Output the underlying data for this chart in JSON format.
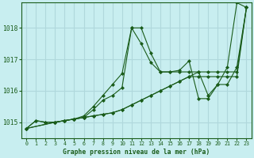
{
  "title": "Graphe pression niveau de la mer (hPa)",
  "bg_color": "#c8eef0",
  "grid_color": "#b0d8dc",
  "line_color": "#1a5c1a",
  "marker_color": "#1a5c1a",
  "x_ticks": [
    0,
    1,
    2,
    3,
    4,
    5,
    6,
    7,
    8,
    9,
    10,
    11,
    12,
    13,
    14,
    15,
    16,
    17,
    18,
    19,
    20,
    21,
    22,
    23
  ],
  "y_ticks": [
    1015,
    1016,
    1017,
    1018
  ],
  "ylim": [
    1014.5,
    1018.8
  ],
  "xlim": [
    -0.5,
    23.5
  ],
  "series": [
    {
      "x": [
        0,
        1,
        2,
        3,
        4,
        5,
        6,
        7,
        8,
        9,
        10,
        11,
        12,
        13,
        14,
        15,
        16,
        17,
        18,
        19,
        20,
        21,
        22,
        23
      ],
      "y": [
        1014.8,
        1015.05,
        1015.0,
        1015.0,
        1015.05,
        1015.1,
        1015.15,
        1015.4,
        1015.7,
        1015.85,
        1016.1,
        1018.0,
        1018.0,
        1017.2,
        1016.6,
        1016.6,
        1016.6,
        1016.6,
        1016.6,
        1015.85,
        1016.2,
        1016.2,
        1016.75,
        1018.65
      ]
    },
    {
      "x": [
        0,
        1,
        2,
        3,
        4,
        5,
        6,
        7,
        8,
        9,
        10,
        11,
        12,
        13,
        14,
        15,
        16,
        17,
        18,
        19,
        20,
        21,
        22,
        23
      ],
      "y": [
        1014.8,
        1015.05,
        1015.0,
        1015.0,
        1015.05,
        1015.1,
        1015.2,
        1015.5,
        1015.85,
        1016.2,
        1016.55,
        1018.0,
        1017.5,
        1016.9,
        1016.6,
        1016.6,
        1016.65,
        1016.95,
        1015.75,
        1015.75,
        1016.2,
        1016.75,
        1018.8,
        1018.65
      ]
    },
    {
      "x": [
        0,
        3,
        4,
        5,
        6,
        7,
        8,
        9,
        10,
        11,
        12,
        13,
        14,
        15,
        16,
        17,
        18,
        19,
        20,
        21,
        22,
        23
      ],
      "y": [
        1014.8,
        1015.0,
        1015.05,
        1015.1,
        1015.15,
        1015.2,
        1015.25,
        1015.3,
        1015.4,
        1015.55,
        1015.7,
        1015.85,
        1016.0,
        1016.15,
        1016.3,
        1016.45,
        1016.45,
        1016.45,
        1016.45,
        1016.45,
        1016.45,
        1018.65
      ]
    },
    {
      "x": [
        0,
        3,
        4,
        5,
        6,
        7,
        8,
        9,
        10,
        11,
        12,
        13,
        14,
        15,
        16,
        17,
        18,
        19,
        20,
        21,
        22,
        23
      ],
      "y": [
        1014.8,
        1015.0,
        1015.05,
        1015.1,
        1015.15,
        1015.2,
        1015.25,
        1015.3,
        1015.4,
        1015.55,
        1015.7,
        1015.85,
        1016.0,
        1016.15,
        1016.3,
        1016.45,
        1016.6,
        1016.6,
        1016.6,
        1016.6,
        1016.6,
        1018.65
      ]
    }
  ]
}
